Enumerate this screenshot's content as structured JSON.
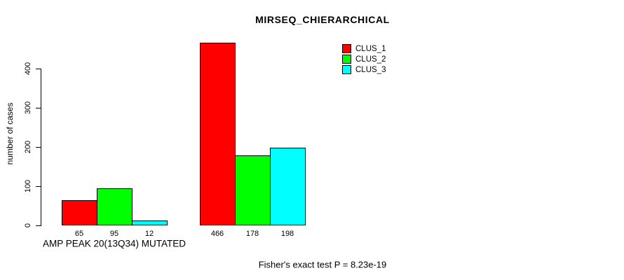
{
  "chart_data": {
    "type": "bar",
    "title": "MIRSEQ_CHIERARCHICAL",
    "ylabel": "number of cases",
    "xlabel": "",
    "group_labels": [
      "AMP PEAK 20(13Q34) MUTATED",
      ""
    ],
    "y_ticks": [
      0,
      100,
      200,
      300,
      400
    ],
    "ylim": [
      0,
      480
    ],
    "grid": false,
    "series": [
      {
        "name": "CLUS_1",
        "color": "#ff0000",
        "values": [
          65,
          466
        ]
      },
      {
        "name": "CLUS_2",
        "color": "#00ff00",
        "values": [
          95,
          178
        ]
      },
      {
        "name": "CLUS_3",
        "color": "#00ffff",
        "values": [
          12,
          198
        ]
      }
    ],
    "bar_value_labels": [
      [
        65,
        95,
        12
      ],
      [
        466,
        178,
        198
      ]
    ],
    "legend": {
      "position": "top-right",
      "entries": [
        "CLUS_1",
        "CLUS_2",
        "CLUS_3"
      ]
    },
    "annotation": "Fisher's exact test P = 8.23e-19"
  }
}
